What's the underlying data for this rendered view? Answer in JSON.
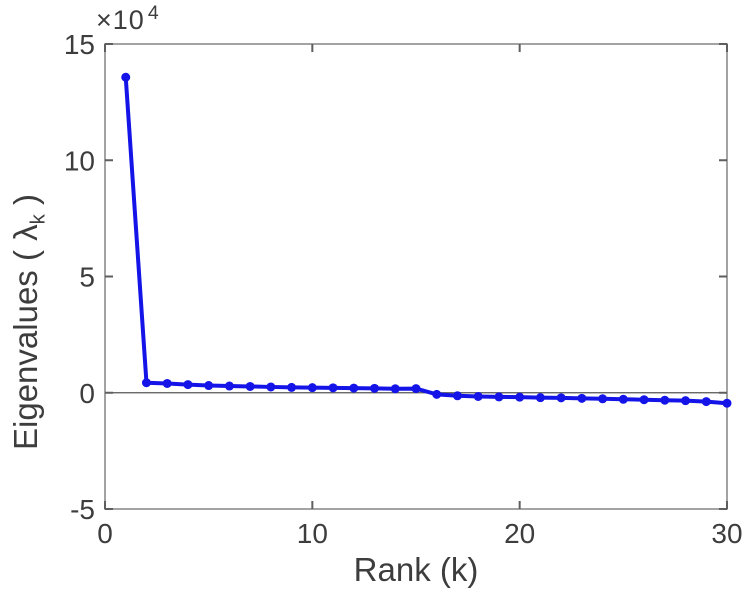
{
  "chart": {
    "exponent_base": "×10",
    "exponent_power": "4",
    "xlabel": "Rank (k)",
    "ylabel_pre": "Eigenvalues ( ",
    "ylabel_lambda": "λ",
    "ylabel_sub": "k",
    "ylabel_post": " )"
  },
  "chart_data": {
    "type": "line",
    "title": "",
    "xlabel": "Rank (k)",
    "ylabel": "Eigenvalues ( λ_k )",
    "values_unit": "×10^4",
    "x": [
      1,
      2,
      3,
      4,
      5,
      6,
      7,
      8,
      9,
      10,
      11,
      12,
      13,
      14,
      15,
      16,
      17,
      18,
      19,
      20,
      21,
      22,
      23,
      24,
      25,
      26,
      27,
      28,
      29,
      30
    ],
    "series": [
      {
        "name": "eigenvalues",
        "values": [
          13.57,
          0.43,
          0.4,
          0.35,
          0.31,
          0.29,
          0.27,
          0.25,
          0.23,
          0.22,
          0.21,
          0.2,
          0.19,
          0.17,
          0.18,
          -0.07,
          -0.13,
          -0.16,
          -0.18,
          -0.19,
          -0.21,
          -0.22,
          -0.24,
          -0.26,
          -0.28,
          -0.3,
          -0.32,
          -0.34,
          -0.38,
          -0.45
        ]
      }
    ],
    "xlim": [
      0,
      30
    ],
    "ylim": [
      -5,
      15
    ],
    "xticks": [
      0,
      10,
      20,
      30
    ],
    "yticks": [
      -5,
      0,
      5,
      10,
      15
    ],
    "grid": false,
    "zero_line": true,
    "legend": "none",
    "marker": "o",
    "line_color": "#1414e8",
    "axis_color": "#8c8c8c",
    "tick_color": "#5e5e5e",
    "text_color": "#3d3d3d",
    "zero_line_color": "#555555",
    "background_color": "#ffffff"
  }
}
